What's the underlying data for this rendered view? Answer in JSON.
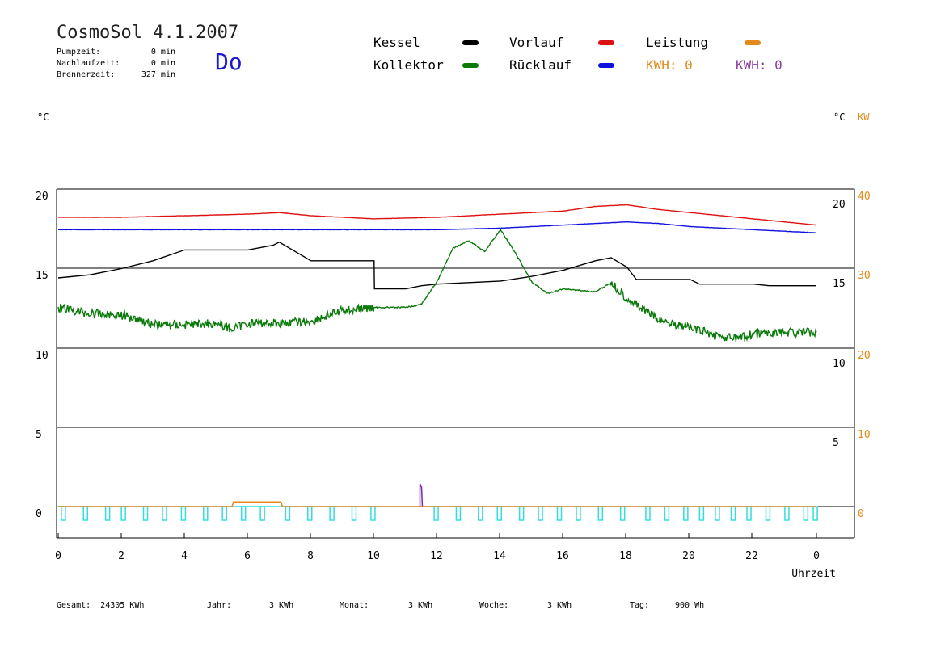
{
  "header": {
    "title": "CosmoSol 4.1.2007",
    "day": "Do",
    "info": [
      {
        "label": "Pumpzeit:",
        "value": "0 min"
      },
      {
        "label": "Nachlaufzeit:",
        "value": "0 min"
      },
      {
        "label": "Brennerzeit:",
        "value": "327 min"
      }
    ]
  },
  "legend": {
    "kessel": "Kessel",
    "kollektor": "Kollektor",
    "vorlauf": "Vorlauf",
    "ruecklauf": "Rücklauf",
    "leistung": "Leistung",
    "kwh1": "KWH: 0",
    "kwh2": "KWH: 0"
  },
  "units": {
    "left": "°C",
    "right_c": "°C",
    "right_kw": "KW"
  },
  "colors": {
    "kessel": "#000000",
    "kollektor": "#0a7a0a",
    "vorlauf": "#dd1111",
    "ruecklauf": "#1111dd",
    "leistung": "#e48a1c",
    "pump": "#33dddd",
    "spike": "#7a2aa0"
  },
  "footer": {
    "gesamt": "Gesamt:  24305 KWh",
    "jahr": "Jahr:",
    "jahr_val": "3 KWh",
    "monat": "Monat:",
    "monat_val": "3 KWh",
    "woche": "Woche:",
    "woche_val": "3 KWh",
    "tag": "Tag:",
    "tag_val": "900 Wh"
  },
  "chart_data": {
    "type": "line",
    "xlabel": "Uhrzeit",
    "ylabel": "°C",
    "x_ticks": [
      "0",
      "2",
      "4",
      "6",
      "8",
      "10",
      "12",
      "14",
      "16",
      "18",
      "20",
      "22",
      "0"
    ],
    "y_left_ticks": [
      "20",
      "15",
      "10",
      "5",
      "0"
    ],
    "y_right_c_ticks": [
      "20",
      "15",
      "10",
      "5"
    ],
    "y_right_kw_ticks": [
      "40",
      "30",
      "20",
      "10",
      "0"
    ],
    "xlim": [
      0,
      24
    ],
    "ylim": [
      -2,
      20
    ],
    "grid": "horizontal",
    "series": [
      {
        "name": "Vorlauf",
        "key": "vorlauf",
        "x": [
          0,
          2,
          4,
          6,
          7,
          8,
          10,
          12,
          14,
          16,
          17,
          18,
          19,
          20,
          21,
          22,
          23,
          24
        ],
        "y": [
          18.6,
          18.6,
          18.7,
          18.8,
          18.9,
          18.7,
          18.5,
          18.6,
          18.8,
          19.0,
          19.3,
          19.4,
          19.1,
          18.9,
          18.7,
          18.5,
          18.3,
          18.1
        ]
      },
      {
        "name": "Rücklauf",
        "key": "ruecklauf",
        "x": [
          0,
          4,
          8,
          12,
          14,
          16,
          17,
          18,
          19,
          20,
          22,
          24
        ],
        "y": [
          17.8,
          17.8,
          17.8,
          17.8,
          17.9,
          18.1,
          18.2,
          18.3,
          18.2,
          18.0,
          17.8,
          17.6
        ]
      },
      {
        "name": "Kessel",
        "key": "kessel",
        "x": [
          0,
          1,
          2,
          3,
          4,
          5,
          6,
          6.8,
          7,
          7.5,
          8,
          9,
          10,
          10.01,
          11,
          11.5,
          12,
          13,
          14,
          15,
          16,
          17,
          17.5,
          18,
          18.3,
          19,
          20,
          20.3,
          21,
          22,
          22.5,
          23,
          24
        ],
        "y": [
          14.7,
          14.9,
          15.3,
          15.8,
          16.5,
          16.5,
          16.5,
          16.8,
          17.0,
          16.4,
          15.8,
          15.8,
          15.8,
          14.0,
          14.0,
          14.2,
          14.3,
          14.4,
          14.5,
          14.8,
          15.2,
          15.8,
          16.0,
          15.4,
          14.6,
          14.6,
          14.6,
          14.3,
          14.3,
          14.3,
          14.2,
          14.2,
          14.2
        ]
      },
      {
        "name": "Kollektor",
        "key": "kollektor",
        "x": [
          0,
          1,
          2,
          2.5,
          3,
          4,
          5,
          5.5,
          6,
          6.5,
          7,
          8,
          9,
          10,
          11,
          11.5,
          12,
          12.5,
          13,
          13.5,
          14,
          14.5,
          15,
          15.5,
          16,
          17,
          17.5,
          18,
          19,
          20,
          20.5,
          21,
          21.5,
          22,
          23,
          24
        ],
        "y": [
          12.8,
          12.4,
          12.3,
          12.1,
          11.7,
          11.7,
          11.8,
          11.4,
          11.8,
          11.8,
          11.8,
          11.9,
          12.6,
          12.8,
          12.8,
          13.0,
          14.5,
          16.6,
          17.1,
          16.4,
          17.8,
          16.2,
          14.4,
          13.7,
          14.0,
          13.8,
          14.4,
          13.4,
          12.0,
          11.5,
          11.2,
          10.9,
          10.8,
          11.1,
          11.2,
          11.2
        ]
      },
      {
        "name": "Leistung",
        "key": "leistung",
        "x": [
          0,
          5.5,
          5.55,
          7.05,
          7.1,
          24
        ],
        "y": [
          0,
          0,
          0.3,
          0.3,
          0,
          0
        ]
      }
    ],
    "pump_cycles_hours": [
      0.1,
      0.8,
      1.5,
      2.0,
      2.7,
      3.3,
      3.9,
      4.6,
      5.2,
      5.8,
      6.4,
      7.2,
      7.9,
      8.6,
      9.3,
      9.9,
      11.9,
      12.6,
      13.3,
      13.9,
      14.6,
      15.2,
      15.8,
      16.4,
      17.1,
      17.8,
      18.6,
      19.2,
      19.8,
      20.3,
      20.8,
      21.3,
      21.8,
      22.4,
      23.0,
      23.6,
      23.9
    ],
    "spike_x": 11.45
  }
}
